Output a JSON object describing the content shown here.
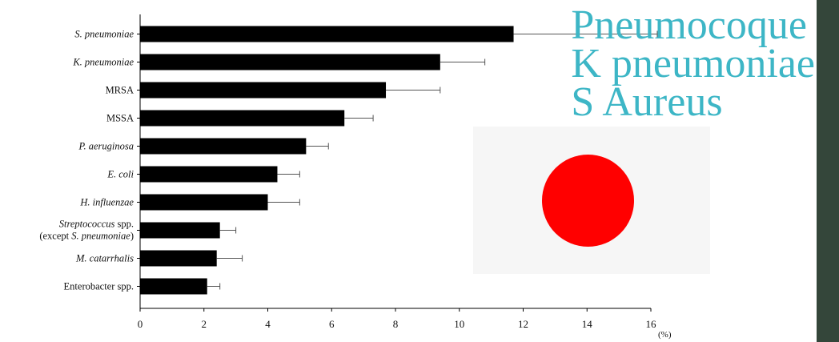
{
  "chart_data": {
    "type": "bar",
    "orientation": "horizontal",
    "title": "",
    "xlabel": "",
    "ylabel": "",
    "unit": "(%)",
    "xlim": [
      0,
      16
    ],
    "x_ticks": [
      "0",
      "2",
      "4",
      "6",
      "8",
      "10",
      "12",
      "14",
      "16"
    ],
    "error_bars": true,
    "grid": false,
    "categories": [
      {
        "label": "S. pneumoniae",
        "italic": true
      },
      {
        "label": "K. pneumoniae",
        "italic": true
      },
      {
        "label": "MRSA",
        "italic": false
      },
      {
        "label": "MSSA",
        "italic": false
      },
      {
        "label": "P. aeruginosa",
        "italic": true
      },
      {
        "label": "E. coli",
        "italic": true
      },
      {
        "label": "H. influenzae",
        "italic": true
      },
      {
        "label": "Streptococcus spp.",
        "label2": "(except S. pneumoniae)",
        "italic": false
      },
      {
        "label": "M. catarrhalis",
        "italic": true
      },
      {
        "label": "Enterobacter spp.",
        "italic": false
      }
    ],
    "values": [
      11.7,
      9.4,
      7.7,
      6.4,
      5.2,
      4.3,
      4.0,
      2.5,
      2.4,
      2.1
    ],
    "errors": [
      4.5,
      1.4,
      1.7,
      0.9,
      0.7,
      0.7,
      1.0,
      0.5,
      0.8,
      0.4
    ]
  },
  "overlay": {
    "line1": "Pneumocoque",
    "line2": "K pneumoniae",
    "line3": "S Aureus",
    "color": "#3db6c6"
  },
  "flag": {
    "background": "#f6f6f6",
    "sun_color": "#ff0000"
  },
  "sidebar_color": "#34463a"
}
